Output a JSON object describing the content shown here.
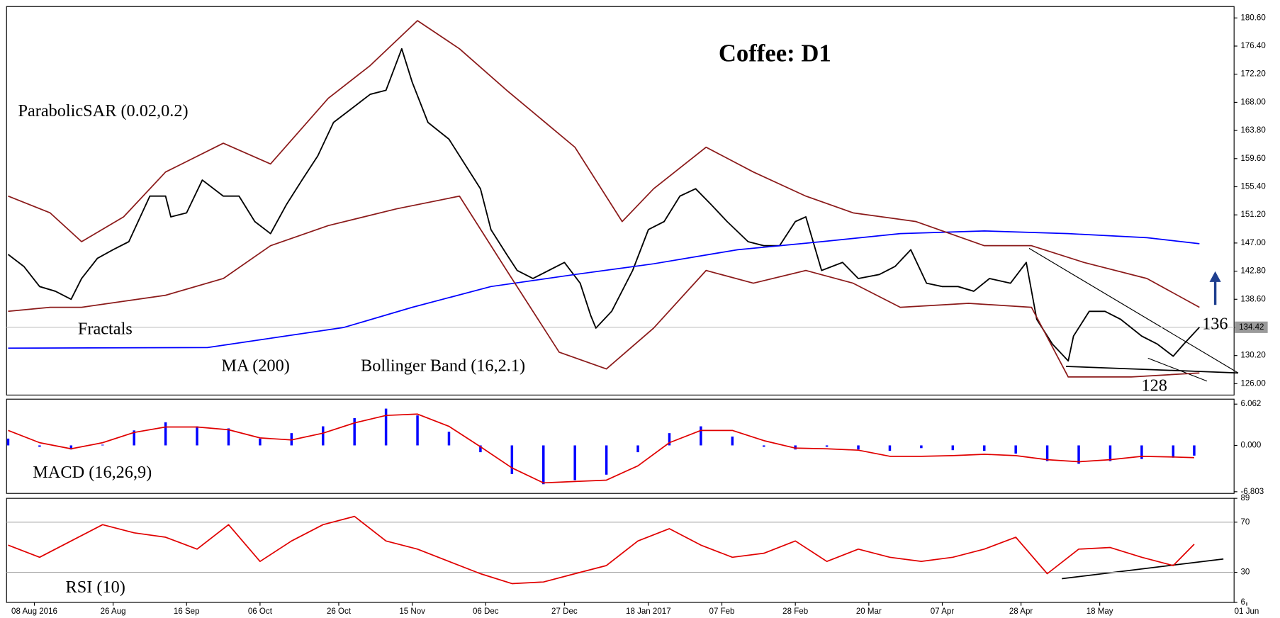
{
  "chart_data": [
    {
      "type": "line",
      "title": "Coffee: D1",
      "annotations": [
        "ParabolicSAR (0.02,0.2)",
        "Fractals",
        "Bollinger Band (16,2.1)",
        "136",
        "128"
      ],
      "last_value": 134.42,
      "xlim": [
        -0.3,
        233.6
      ],
      "xticks": [
        {
          "value": 5,
          "label": "08 Aug 2016"
        },
        {
          "value": 20,
          "label": "26 Aug"
        },
        {
          "value": 34,
          "label": "16 Sep"
        },
        {
          "value": 48,
          "label": "06 Oct"
        },
        {
          "value": 63,
          "label": "26 Oct"
        },
        {
          "value": 77,
          "label": "15 Nov"
        },
        {
          "value": 91,
          "label": "06 Dec"
        },
        {
          "value": 106,
          "label": "27 Dec"
        },
        {
          "value": 122,
          "label": "18 Jan 2017"
        },
        {
          "value": 136,
          "label": "07 Feb"
        },
        {
          "value": 150,
          "label": "28 Feb"
        },
        {
          "value": 164,
          "label": "20 Mar"
        },
        {
          "value": 178,
          "label": "07 Apr"
        },
        {
          "value": 193,
          "label": "28 Apr"
        },
        {
          "value": 208,
          "label": "18 May"
        },
        {
          "value": 236,
          "label": "01 Jun"
        }
      ],
      "ylim": [
        124.3,
        182.3
      ],
      "yticks": [
        {
          "value": 126,
          "label": "126.00"
        },
        {
          "value": 130.2,
          "label": "130.20"
        },
        {
          "value": 134.4,
          "label": "134.40"
        },
        {
          "value": 138.6,
          "label": "138.60"
        },
        {
          "value": 142.8,
          "label": "142.80"
        },
        {
          "value": 147,
          "label": "147.00"
        },
        {
          "value": 151.2,
          "label": "151.20"
        },
        {
          "value": 155.4,
          "label": "155.40"
        },
        {
          "value": 159.6,
          "label": "159.60"
        },
        {
          "value": 163.8,
          "label": "163.80"
        },
        {
          "value": 168,
          "label": "168.00"
        },
        {
          "value": 172.2,
          "label": "172.20"
        },
        {
          "value": 176.4,
          "label": "176.40"
        },
        {
          "value": 180.6,
          "label": "180.60"
        }
      ],
      "series": [
        {
          "color": "#000000",
          "x": [
            0,
            3,
            6,
            9,
            12,
            14,
            17,
            20,
            23,
            27,
            30,
            31,
            34,
            37,
            41,
            44,
            47,
            50,
            53,
            56,
            59,
            62,
            66,
            69,
            72,
            75,
            77,
            80,
            84,
            87,
            90,
            92,
            95,
            97,
            100,
            103,
            106,
            109,
            111,
            112,
            115,
            119,
            122,
            125,
            128,
            131,
            134,
            137,
            141,
            144,
            147,
            150,
            152,
            155,
            159,
            162,
            166,
            169,
            172,
            175,
            178,
            181,
            184,
            187,
            191,
            194,
            196,
            199,
            202,
            203,
            206,
            209,
            212,
            216,
            219,
            222,
            224,
            227
          ],
          "values": [
            145.3,
            143.5,
            140.5,
            139.8,
            138.6,
            141.7,
            144.7,
            146,
            147.2,
            154,
            154,
            150.9,
            151.5,
            156.4,
            154,
            154,
            150.2,
            148.4,
            152.7,
            156.4,
            160,
            165,
            167.4,
            169.2,
            169.8,
            176,
            171,
            165,
            162.5,
            158.8,
            155.1,
            149,
            145.3,
            142.9,
            141.7,
            142.9,
            144.1,
            141,
            136.2,
            134.3,
            136.8,
            142.9,
            149,
            150.2,
            154,
            155.1,
            152.7,
            150.2,
            147.2,
            146.6,
            146.6,
            150.2,
            150.9,
            142.9,
            144.1,
            141.7,
            142.3,
            143.5,
            146,
            141,
            140.5,
            140.5,
            139.8,
            141.7,
            141,
            144.1,
            135.6,
            131.9,
            129.4,
            133.1,
            136.8,
            136.8,
            135.6,
            133.1,
            131.9,
            130.1,
            131.9,
            134.42
          ]
        },
        {
          "name": "MA (200)",
          "color": "#0000ff",
          "x": [
            0,
            38,
            64,
            77,
            92,
            108,
            123,
            139,
            155,
            170,
            186,
            202,
            217,
            227
          ],
          "values": [
            131.3,
            131.4,
            134.4,
            137.4,
            140.5,
            142.3,
            143.9,
            146,
            147.2,
            148.4,
            148.8,
            148.4,
            147.8,
            146.9
          ]
        },
        {
          "color": "#8b1a1a",
          "x": [
            0,
            8,
            14,
            22,
            30,
            41,
            50,
            61,
            69,
            78,
            86,
            95,
            108,
            117,
            123,
            133,
            142,
            152,
            161,
            173,
            186,
            195,
            205,
            217,
            227
          ],
          "values": [
            154,
            151.5,
            147.2,
            150.9,
            157.6,
            161.9,
            158.8,
            168.6,
            173.5,
            180.2,
            176,
            169.8,
            161.3,
            150.2,
            155.1,
            161.3,
            157.6,
            154,
            151.5,
            150.2,
            146.6,
            146.6,
            144.1,
            141.7,
            137.4
          ]
        },
        {
          "color": "#8b1a1a",
          "x": [
            0,
            8,
            14,
            30,
            41,
            50,
            61,
            74,
            86,
            95,
            105,
            114,
            123,
            133,
            142,
            152,
            161,
            170,
            183,
            195,
            202,
            214,
            227
          ],
          "values": [
            136.8,
            137.4,
            137.4,
            139.2,
            141.7,
            146.6,
            149.6,
            152.1,
            154,
            142.9,
            130.7,
            128.2,
            134.3,
            142.9,
            141,
            142.9,
            141,
            137.4,
            138,
            137.4,
            127,
            127,
            127.6
          ]
        }
      ]
    },
    {
      "type": "combo",
      "title": "MACD (16,26,9)",
      "xlim": [
        -0.3,
        233.6
      ],
      "ylim": [
        -7.05,
        6.79
      ],
      "yticks": [
        6.062,
        {
          "value": 0,
          "label": "0.000"
        },
        -6.803
      ],
      "x": [
        0,
        6,
        12,
        18,
        24,
        30,
        36,
        42,
        48,
        54,
        60,
        66,
        72,
        78,
        84,
        90,
        96,
        102,
        108,
        114,
        120,
        126,
        132,
        138,
        144,
        150,
        156,
        162,
        168,
        174,
        180,
        186,
        192,
        198,
        204,
        210,
        216,
        222,
        226
      ],
      "series": [
        {
          "type": "bar",
          "color": "#0000ff",
          "values": [
            1.0,
            -0.2,
            -0.6,
            0.1,
            2.2,
            3.4,
            2.8,
            2.5,
            1.0,
            1.8,
            2.8,
            4.0,
            5.4,
            4.4,
            2.0,
            -1.0,
            -4.2,
            -5.7,
            -5.1,
            -4.3,
            -1.0,
            1.8,
            2.8,
            1.3,
            -0.2,
            -0.6,
            -0.2,
            -0.6,
            -0.8,
            -0.4,
            -0.7,
            -0.8,
            -1.2,
            -2.3,
            -2.7,
            -2.3,
            -2.0,
            -1.8,
            -1.5
          ]
        },
        {
          "type": "line",
          "color": "#e00000",
          "values": [
            2.2,
            0.4,
            -0.5,
            0.4,
            1.9,
            2.7,
            2.7,
            2.3,
            1.1,
            0.8,
            1.8,
            3.3,
            4.4,
            4.6,
            2.8,
            -0.2,
            -3.3,
            -5.5,
            -5.3,
            -5.1,
            -3.0,
            0.4,
            2.2,
            2.2,
            0.7,
            -0.4,
            -0.5,
            -0.7,
            -1.6,
            -1.6,
            -1.5,
            -1.3,
            -1.5,
            -2.1,
            -2.4,
            -2.1,
            -1.6,
            -1.7,
            -1.8
          ]
        }
      ]
    },
    {
      "type": "line",
      "title": "RSI (10)",
      "grid": true,
      "xlim": [
        -0.3,
        233.6
      ],
      "ylim": [
        6,
        89
      ],
      "yticks": [
        6,
        30,
        70,
        89
      ],
      "x": [
        0,
        6,
        12,
        18,
        24,
        30,
        36,
        42,
        48,
        54,
        60,
        66,
        72,
        78,
        84,
        90,
        96,
        102,
        108,
        114,
        120,
        126,
        132,
        138,
        144,
        150,
        156,
        162,
        168,
        174,
        180,
        186,
        192,
        198,
        204,
        210,
        216,
        222,
        226
      ],
      "series": [
        {
          "type": "line",
          "color": "#e00000",
          "values": [
            51.7,
            42,
            55,
            68,
            61.5,
            58,
            48.5,
            68,
            38.7,
            55,
            68,
            74.6,
            55,
            48.5,
            38.7,
            28.9,
            21,
            22.3,
            28.9,
            35.4,
            55,
            64.8,
            51.7,
            42,
            45.2,
            55,
            38.7,
            48.5,
            42,
            38.7,
            42,
            48.5,
            58,
            28.9,
            48.5,
            49.8,
            42,
            35.4,
            52.4
          ]
        }
      ]
    }
  ]
}
